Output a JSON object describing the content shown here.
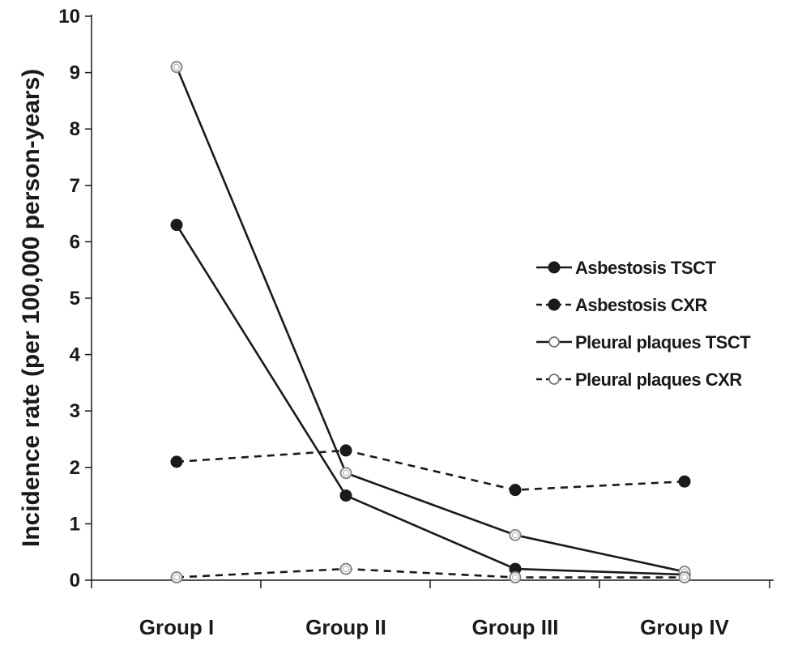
{
  "chart_data": {
    "type": "line",
    "title": "",
    "xlabel": "",
    "ylabel": "Incidence rate (per 100,000 person-years)",
    "categories": [
      "Group I",
      "Group II",
      "Group III",
      "Group IV"
    ],
    "ylim": [
      0,
      10
    ],
    "yticks": [
      0,
      1,
      2,
      3,
      4,
      5,
      6,
      7,
      8,
      9,
      10
    ],
    "grid": false,
    "legend_position": "right",
    "series": [
      {
        "name": "Asbestosis TSCT",
        "values": [
          6.3,
          1.5,
          0.2,
          0.1
        ],
        "line_style": "solid",
        "marker": "filled-circle",
        "color": "#1a1a1a"
      },
      {
        "name": "Asbestosis CXR",
        "values": [
          2.1,
          2.3,
          1.6,
          1.75
        ],
        "line_style": "dashed",
        "marker": "filled-circle",
        "color": "#1a1a1a"
      },
      {
        "name": "Pleural plaques TSCT",
        "values": [
          9.1,
          1.9,
          0.8,
          0.15
        ],
        "line_style": "solid",
        "marker": "open-circle",
        "color": "#1a1a1a"
      },
      {
        "name": "Pleural plaques CXR",
        "values": [
          0.05,
          0.2,
          0.05,
          0.05
        ],
        "line_style": "dashed",
        "marker": "open-circle",
        "color": "#1a1a1a"
      }
    ]
  }
}
